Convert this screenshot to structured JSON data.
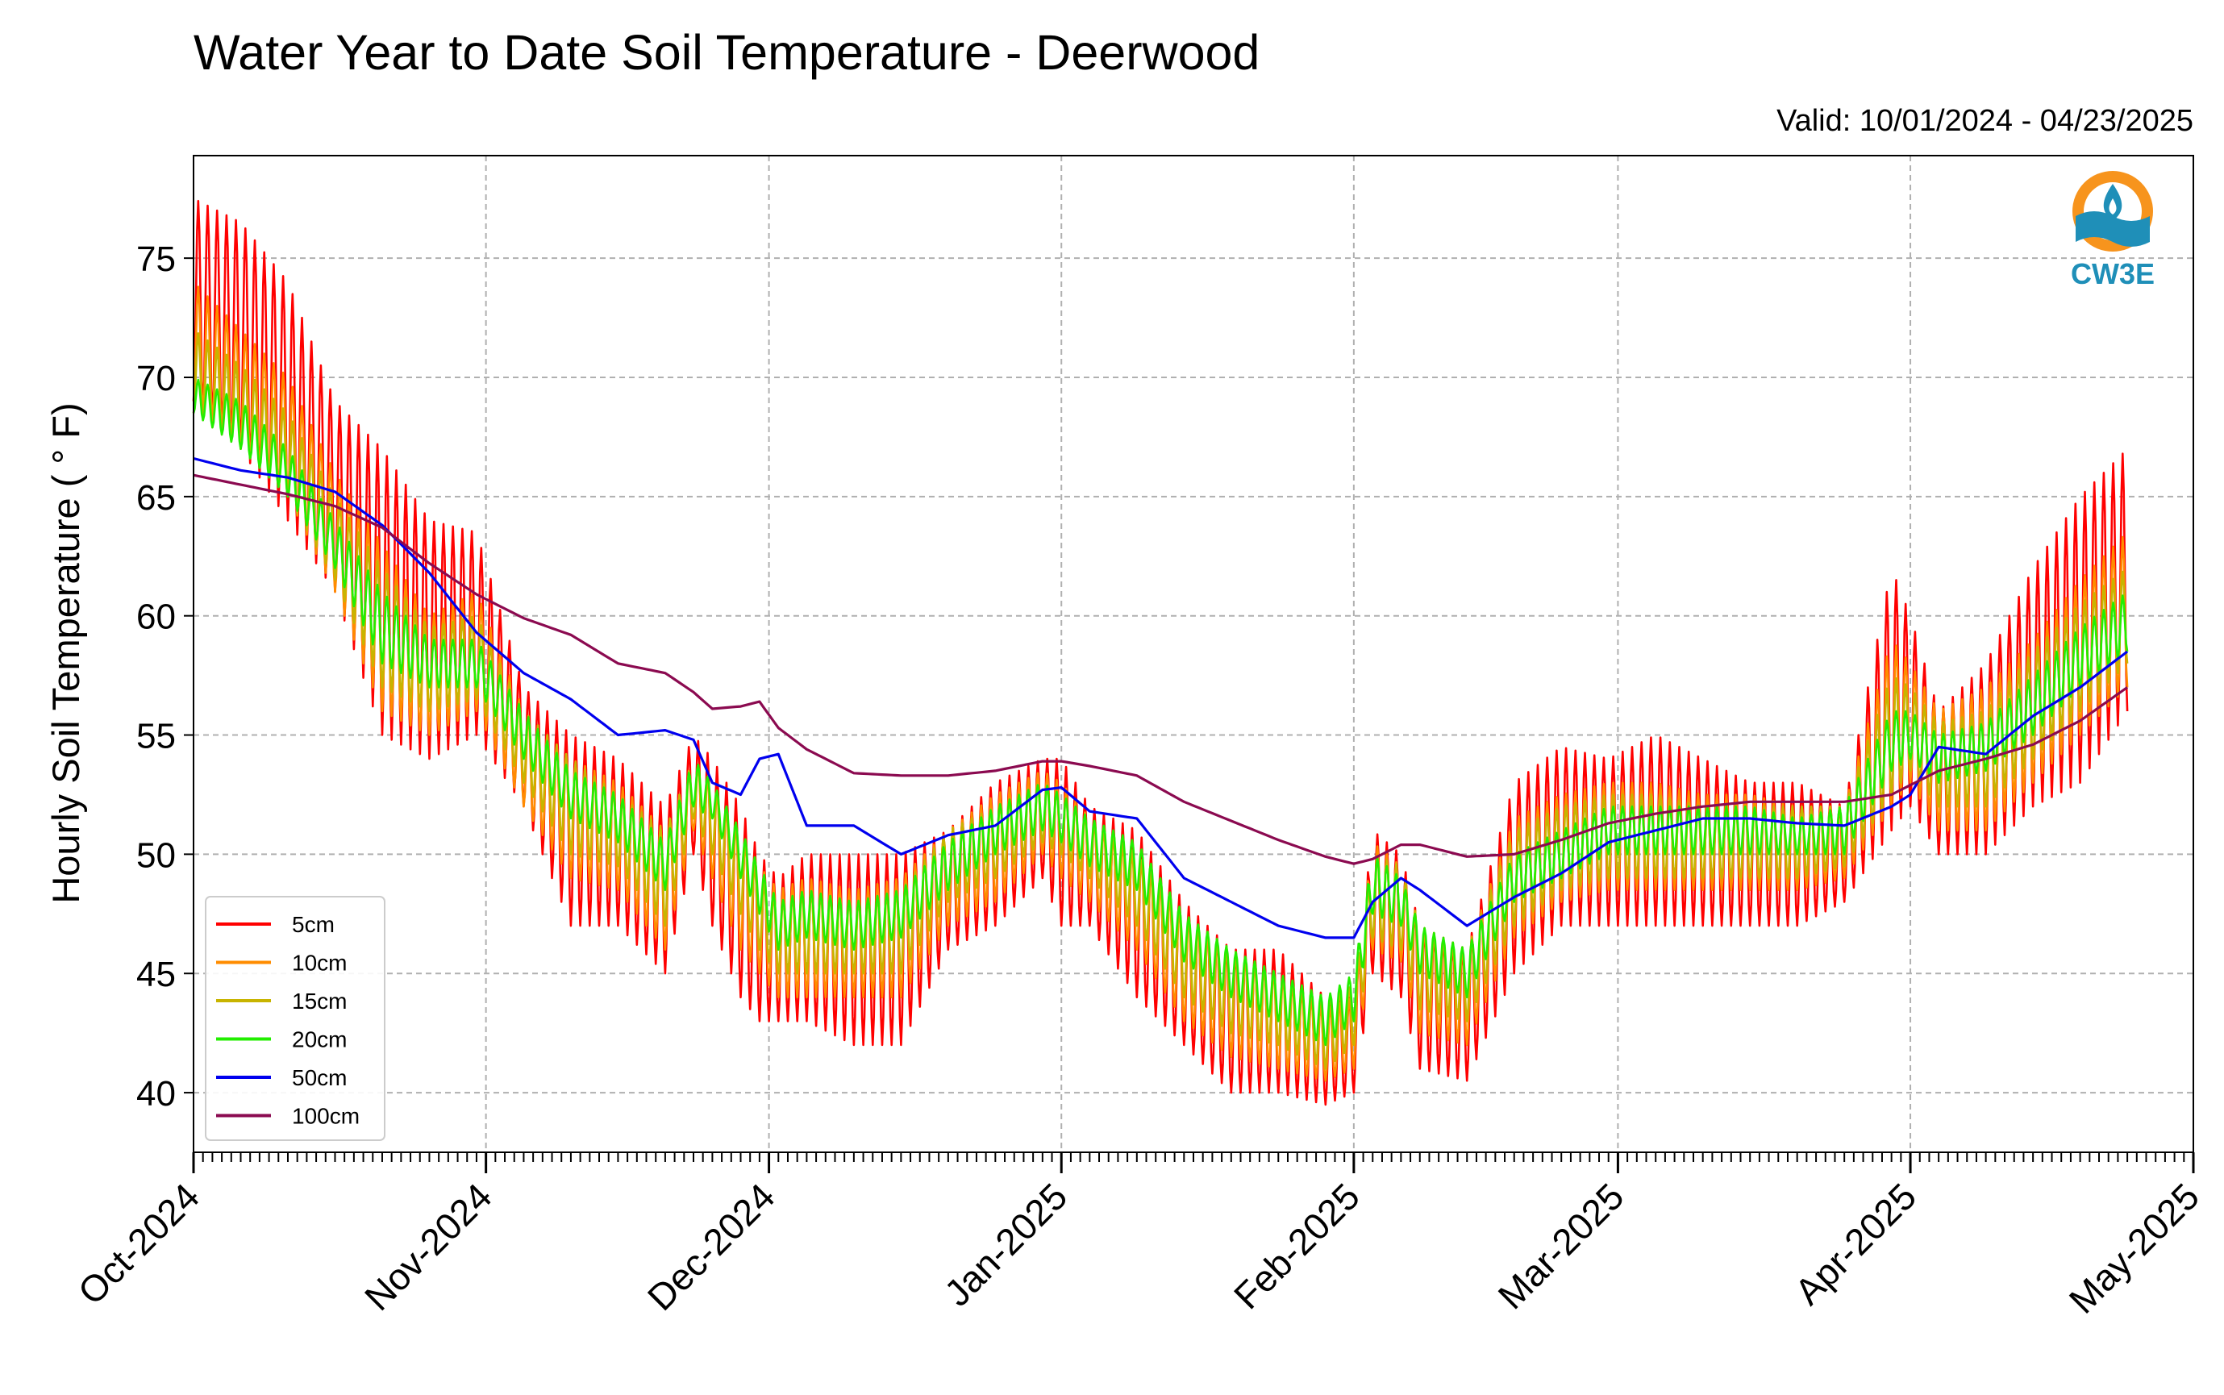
{
  "chart_data": {
    "type": "line",
    "title": "Water Year to Date Soil Temperature - Deerwood",
    "subtitle": "Valid: 10/01/2024 - 04/23/2025",
    "xlabel": "",
    "ylabel": "Hourly Soil Temperature ( ° F)",
    "x_unit": "day of water year (0 = 2024-10-01)",
    "xlim": [
      0,
      212
    ],
    "ylim": [
      37.5,
      79.3
    ],
    "y_ticks": [
      40,
      45,
      50,
      55,
      60,
      65,
      70,
      75
    ],
    "x_ticks": [
      {
        "label": "Oct-2024",
        "value": 0
      },
      {
        "label": "Nov-2024",
        "value": 31
      },
      {
        "label": "Dec-2024",
        "value": 61
      },
      {
        "label": "Jan-2025",
        "value": 92
      },
      {
        "label": "Feb-2025",
        "value": 123
      },
      {
        "label": "Mar-2025",
        "value": 151
      },
      {
        "label": "Apr-2025",
        "value": 182
      },
      {
        "label": "May-2025",
        "value": 212
      }
    ],
    "grid": true,
    "legend_position": "lower-left",
    "logo_text": "CW3E",
    "x": [
      0,
      5,
      10,
      15,
      20,
      25,
      30,
      35,
      40,
      45,
      50,
      53,
      55,
      58,
      60,
      62,
      65,
      70,
      75,
      80,
      85,
      90,
      92,
      95,
      100,
      105,
      110,
      115,
      120,
      123,
      125,
      128,
      130,
      135,
      140,
      145,
      150,
      155,
      160,
      165,
      170,
      175,
      180,
      182,
      185,
      190,
      195,
      200,
      205
    ],
    "series": [
      {
        "name": "5cm",
        "color": "#ff0000",
        "values": [
          73,
          71,
          68,
          63,
          59,
          57,
          58,
          54,
          51,
          50,
          48,
          53,
          51,
          48,
          47,
          45,
          46,
          45,
          46,
          49,
          50,
          52,
          51,
          50,
          48,
          45,
          43,
          42,
          41,
          42,
          49,
          48,
          44,
          43,
          49,
          50,
          51,
          50.5,
          51,
          51,
          50.5,
          51,
          55,
          56,
          54,
          55,
          57,
          59,
          61
        ],
        "range": [
          [
            69,
            77.5
          ],
          [
            67,
            76.5
          ],
          [
            64,
            74
          ],
          [
            61,
            69
          ],
          [
            55,
            67
          ],
          [
            54,
            64
          ],
          [
            55,
            63.5
          ],
          [
            52,
            57
          ],
          [
            47,
            55
          ],
          [
            47,
            54
          ],
          [
            45,
            52
          ],
          [
            50,
            55
          ],
          [
            47,
            54
          ],
          [
            44,
            52
          ],
          [
            43,
            50
          ],
          [
            43,
            49
          ],
          [
            43,
            50
          ],
          [
            42,
            50
          ],
          [
            42,
            50
          ],
          [
            46,
            51
          ],
          [
            47,
            53
          ],
          [
            49,
            54
          ],
          [
            47,
            54
          ],
          [
            47,
            52
          ],
          [
            44,
            51
          ],
          [
            42,
            48
          ],
          [
            40,
            46
          ],
          [
            40,
            46
          ],
          [
            39.5,
            44
          ],
          [
            40,
            44
          ],
          [
            45,
            51
          ],
          [
            44,
            50
          ],
          [
            41,
            47
          ],
          [
            40.5,
            46
          ],
          [
            45,
            53
          ],
          [
            47,
            54.5
          ],
          [
            47,
            54
          ],
          [
            47,
            55
          ],
          [
            47,
            54
          ],
          [
            47,
            53
          ],
          [
            47,
            53
          ],
          [
            48,
            52
          ],
          [
            51,
            62
          ],
          [
            52,
            60
          ],
          [
            50,
            56
          ],
          [
            50,
            58
          ],
          [
            52,
            62
          ],
          [
            53,
            65
          ],
          [
            56,
            67
          ]
        ]
      },
      {
        "name": "10cm",
        "color": "#ff8c00",
        "values": [
          71,
          69.5,
          67,
          63,
          59,
          57,
          58,
          54,
          51.5,
          50.5,
          48.5,
          53,
          51.5,
          49,
          47.5,
          46,
          46.5,
          46,
          46.5,
          49,
          50.5,
          52,
          51.5,
          50,
          48.5,
          45.5,
          44,
          43,
          42,
          43,
          48.5,
          48,
          45,
          44,
          49,
          50,
          51,
          50.5,
          51,
          51,
          50.5,
          51,
          55,
          56,
          54,
          54.5,
          56,
          58,
          60
        ],
        "range": [
          [
            69,
            74
          ],
          [
            67,
            72
          ],
          [
            65,
            70
          ],
          [
            61,
            66
          ],
          [
            56,
            63
          ],
          [
            55,
            60
          ],
          [
            56,
            61
          ],
          [
            52,
            56
          ],
          [
            49,
            54
          ],
          [
            48.5,
            53
          ],
          [
            46,
            51
          ],
          [
            51,
            54
          ],
          [
            49,
            53
          ],
          [
            46,
            51
          ],
          [
            45,
            49.5
          ],
          [
            44,
            48.5
          ],
          [
            44,
            49
          ],
          [
            44,
            48.5
          ],
          [
            44,
            49
          ],
          [
            47,
            51
          ],
          [
            48,
            52.5
          ],
          [
            50,
            53.5
          ],
          [
            49,
            53
          ],
          [
            48,
            51.5
          ],
          [
            46,
            50
          ],
          [
            43,
            47.5
          ],
          [
            41.5,
            46
          ],
          [
            41,
            45
          ],
          [
            40.5,
            43.5
          ],
          [
            41,
            44
          ],
          [
            46,
            50.5
          ],
          [
            45.5,
            49.5
          ],
          [
            42.5,
            47
          ],
          [
            42,
            46
          ],
          [
            46.5,
            51.5
          ],
          [
            48,
            52.5
          ],
          [
            48.5,
            53
          ],
          [
            48.5,
            53
          ],
          [
            48.5,
            52.5
          ],
          [
            48.5,
            52.5
          ],
          [
            48.5,
            52
          ],
          [
            49,
            52
          ],
          [
            52,
            59
          ],
          [
            53,
            58
          ],
          [
            51,
            56
          ],
          [
            51,
            57
          ],
          [
            53,
            59
          ],
          [
            55,
            61.5
          ],
          [
            57,
            63.5
          ]
        ]
      },
      {
        "name": "15cm",
        "color": "#c8b400",
        "values": [
          70,
          68.5,
          66.5,
          63,
          59.5,
          57.5,
          58,
          54.5,
          52,
          51,
          49,
          53,
          52,
          49.5,
          48,
          46.5,
          47,
          46.5,
          47,
          49.5,
          50.5,
          52,
          51.5,
          50.5,
          49,
          46,
          44.5,
          43.5,
          42.5,
          43.5,
          48.5,
          48,
          45.5,
          44.5,
          49,
          50,
          51,
          50.5,
          51,
          51,
          50.5,
          51,
          55,
          55.5,
          54,
          54.5,
          56,
          58,
          60
        ],
        "range": [
          [
            68.5,
            72
          ],
          [
            67,
            70.5
          ],
          [
            65,
            68.5
          ],
          [
            61.5,
            65
          ],
          [
            57,
            62
          ],
          [
            56,
            59.5
          ],
          [
            56.5,
            60
          ],
          [
            53,
            56
          ],
          [
            50,
            54
          ],
          [
            49.5,
            52.5
          ],
          [
            47,
            51
          ],
          [
            51.5,
            54
          ],
          [
            50,
            53
          ],
          [
            47.5,
            51
          ],
          [
            46,
            49
          ],
          [
            45,
            48
          ],
          [
            45,
            48.5
          ],
          [
            45,
            48
          ],
          [
            45,
            48.5
          ],
          [
            48,
            51
          ],
          [
            49,
            52
          ],
          [
            50.5,
            53
          ],
          [
            50,
            52.5
          ],
          [
            49,
            51.5
          ],
          [
            47,
            50
          ],
          [
            44,
            47.5
          ],
          [
            42.5,
            46
          ],
          [
            42,
            45
          ],
          [
            41,
            44
          ],
          [
            42,
            44.5
          ],
          [
            46.5,
            50
          ],
          [
            46,
            49.5
          ],
          [
            43.5,
            47
          ],
          [
            43,
            46
          ],
          [
            47,
            51
          ],
          [
            48.5,
            52
          ],
          [
            49,
            52.5
          ],
          [
            49,
            52.5
          ],
          [
            49,
            52
          ],
          [
            49,
            52
          ],
          [
            49,
            52
          ],
          [
            49.5,
            52
          ],
          [
            52.5,
            57.5
          ],
          [
            53.5,
            57
          ],
          [
            52,
            55.5
          ],
          [
            52,
            56
          ],
          [
            54,
            58.5
          ],
          [
            56,
            60.5
          ],
          [
            58,
            62
          ]
        ]
      },
      {
        "name": "20cm",
        "color": "#22ee00",
        "values": [
          69,
          68,
          66,
          63,
          59.5,
          58,
          58,
          55,
          52.5,
          51.5,
          49.5,
          53,
          52.5,
          50,
          48.5,
          47,
          47.5,
          47,
          47.5,
          49.5,
          51,
          52,
          51.5,
          50.5,
          49.5,
          46.5,
          45,
          44,
          43,
          44,
          48.5,
          48,
          46,
          45,
          49,
          50,
          51,
          51,
          51,
          51,
          50.5,
          51,
          54.5,
          55,
          54,
          54.5,
          56,
          58,
          59.5
        ],
        "range": [
          [
            68.5,
            70
          ],
          [
            67,
            69
          ],
          [
            65,
            67
          ],
          [
            62,
            64
          ],
          [
            58,
            61
          ],
          [
            57,
            59
          ],
          [
            57,
            59
          ],
          [
            54,
            56
          ],
          [
            51.5,
            53.5
          ],
          [
            50.5,
            52.5
          ],
          [
            48.5,
            50.5
          ],
          [
            52,
            54
          ],
          [
            51.5,
            53
          ],
          [
            49,
            51
          ],
          [
            47.5,
            49.5
          ],
          [
            46,
            48
          ],
          [
            46.5,
            48.5
          ],
          [
            46,
            48
          ],
          [
            46.5,
            48.5
          ],
          [
            48.5,
            50.5
          ],
          [
            50,
            52
          ],
          [
            51,
            53
          ],
          [
            50.5,
            52.5
          ],
          [
            49.5,
            51.5
          ],
          [
            48.5,
            50.5
          ],
          [
            45.5,
            47.5
          ],
          [
            44,
            46
          ],
          [
            43,
            45
          ],
          [
            42,
            44
          ],
          [
            43,
            45
          ],
          [
            47.5,
            50
          ],
          [
            47,
            49
          ],
          [
            45,
            47
          ],
          [
            44,
            46
          ],
          [
            48,
            50
          ],
          [
            49,
            51
          ],
          [
            50,
            52
          ],
          [
            50,
            52
          ],
          [
            50,
            52
          ],
          [
            50,
            52
          ],
          [
            50,
            51.5
          ],
          [
            50,
            52
          ],
          [
            53.5,
            56
          ],
          [
            54,
            56
          ],
          [
            53,
            55
          ],
          [
            53.5,
            55.5
          ],
          [
            55,
            57.5
          ],
          [
            57,
            59.5
          ],
          [
            58.5,
            61
          ]
        ]
      },
      {
        "name": "50cm",
        "color": "#0000ee",
        "values": [
          66.6,
          66.1,
          65.8,
          65.2,
          63.8,
          61.8,
          59.3,
          57.6,
          56.5,
          55,
          55.2,
          54.8,
          53,
          52.5,
          54,
          54.2,
          51.2,
          51.2,
          50,
          50.8,
          51.2,
          52.7,
          52.8,
          51.8,
          51.5,
          49,
          48,
          47,
          46.5,
          46.5,
          48,
          49,
          48.5,
          47,
          48.2,
          49.2,
          50.5,
          51,
          51.5,
          51.5,
          51.3,
          51.2,
          52,
          52.5,
          54.5,
          54.2,
          55.8,
          57,
          58.5
        ]
      },
      {
        "name": "100cm",
        "color": "#8b0a50",
        "values": [
          65.9,
          65.5,
          65.1,
          64.6,
          63.7,
          62.2,
          60.9,
          59.9,
          59.2,
          58,
          57.6,
          56.8,
          56.1,
          56.2,
          56.4,
          55.3,
          54.4,
          53.4,
          53.3,
          53.3,
          53.5,
          53.9,
          53.9,
          53.7,
          53.3,
          52.2,
          51.4,
          50.6,
          49.9,
          49.6,
          49.8,
          50.4,
          50.4,
          49.9,
          50,
          50.6,
          51.3,
          51.7,
          52,
          52.2,
          52.2,
          52.2,
          52.5,
          52.9,
          53.5,
          54,
          54.6,
          55.6,
          57
        ]
      }
    ]
  }
}
